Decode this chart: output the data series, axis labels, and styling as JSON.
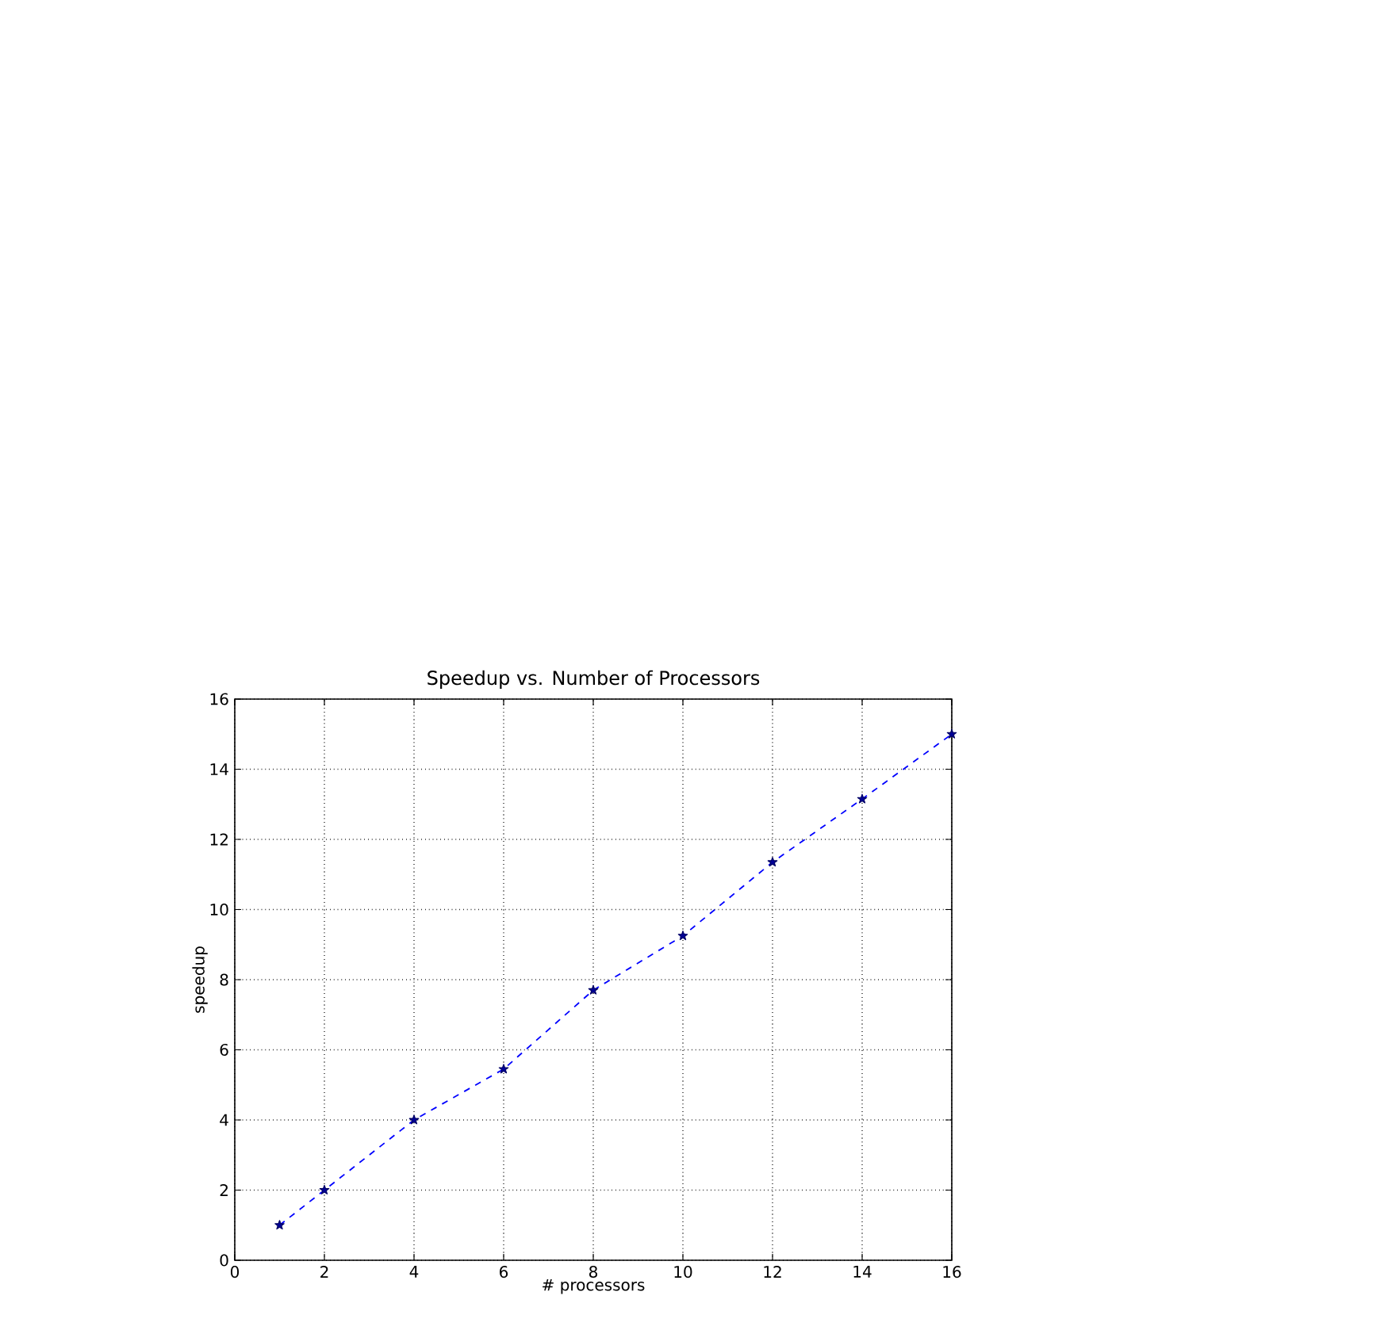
{
  "chart_data": {
    "type": "line",
    "title": "Speedup vs. Number of Processors",
    "xlabel": "# processors",
    "ylabel": "speedup",
    "x": [
      1,
      2,
      4,
      6,
      8,
      10,
      12,
      14,
      16
    ],
    "series": [
      {
        "color": "#0000ff",
        "values": [
          1.0,
          2.0,
          4.0,
          5.45,
          7.7,
          9.25,
          11.35,
          13.15,
          15.0
        ]
      }
    ],
    "xlim": [
      0,
      16
    ],
    "ylim": [
      0,
      16
    ],
    "xticks": [
      0,
      2,
      4,
      6,
      8,
      10,
      12,
      14,
      16
    ],
    "yticks": [
      0,
      2,
      4,
      6,
      8,
      10,
      12,
      14,
      16
    ],
    "grid": true,
    "marker": "star",
    "line_style": "dashed"
  }
}
